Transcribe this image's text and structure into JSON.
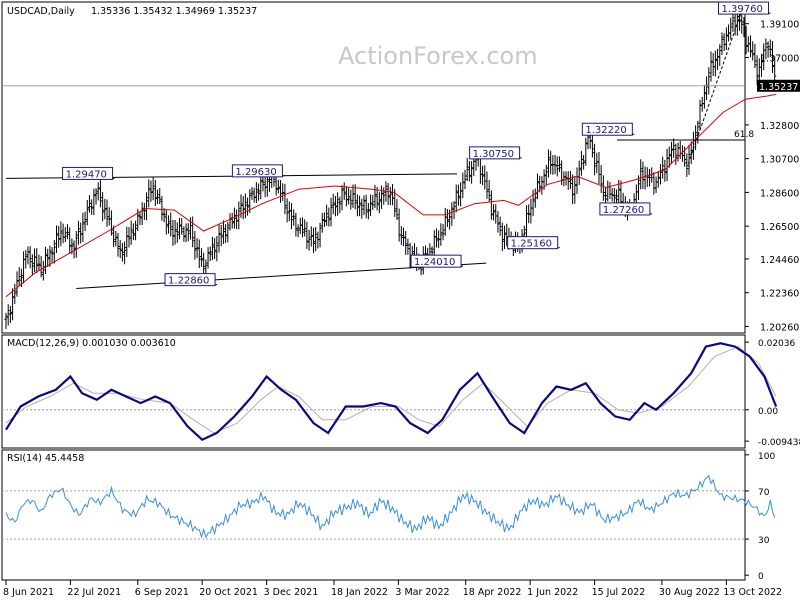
{
  "watermark": "ActionForex.com",
  "chart_data": [
    {
      "type": "candlestick",
      "title": "USDCAD,Daily",
      "ohlc_header": "1.35336 1.35432 1.34969 1.35237",
      "last_price": "1.35237",
      "y_ticks": [
        "1.39100",
        "1.37000",
        "1.34900",
        "1.32800",
        "1.30700",
        "1.28600",
        "1.26500",
        "1.24460",
        "1.22360",
        "1.20260"
      ],
      "x_ticks": [
        "8 Jun 2021",
        "22 Jul 2021",
        "6 Sep 2021",
        "20 Oct 2021",
        "3 Dec 2021",
        "18 Jan 2022",
        "3 Mar 2022",
        "18 Apr 2022",
        "1 Jun 2022",
        "15 Jul 2022",
        "30 Aug 2022",
        "13 Oct 2022"
      ],
      "x_tick_days": [
        0,
        44,
        90,
        134,
        178,
        224,
        268,
        314,
        358,
        402,
        448,
        492
      ],
      "total_days": 502,
      "ylim": [
        1.1985,
        1.4045
      ],
      "price_path": [
        [
          0,
          1.206
        ],
        [
          14,
          1.248
        ],
        [
          24,
          1.238
        ],
        [
          38,
          1.262
        ],
        [
          46,
          1.252
        ],
        [
          62,
          1.288
        ],
        [
          78,
          1.248
        ],
        [
          90,
          1.268
        ],
        [
          100,
          1.29
        ],
        [
          112,
          1.262
        ],
        [
          126,
          1.262
        ],
        [
          134,
          1.24
        ],
        [
          146,
          1.258
        ],
        [
          160,
          1.275
        ],
        [
          172,
          1.288
        ],
        [
          182,
          1.296
        ],
        [
          196,
          1.268
        ],
        [
          210,
          1.255
        ],
        [
          218,
          1.27
        ],
        [
          230,
          1.285
        ],
        [
          246,
          1.276
        ],
        [
          262,
          1.288
        ],
        [
          270,
          1.258
        ],
        [
          282,
          1.24
        ],
        [
          298,
          1.262
        ],
        [
          314,
          1.296
        ],
        [
          322,
          1.308
        ],
        [
          332,
          1.275
        ],
        [
          340,
          1.258
        ],
        [
          350,
          1.252
        ],
        [
          360,
          1.282
        ],
        [
          372,
          1.306
        ],
        [
          388,
          1.288
        ],
        [
          398,
          1.321
        ],
        [
          408,
          1.286
        ],
        [
          418,
          1.284
        ],
        [
          426,
          1.273
        ],
        [
          434,
          1.298
        ],
        [
          444,
          1.292
        ],
        [
          456,
          1.314
        ],
        [
          466,
          1.304
        ],
        [
          480,
          1.36
        ],
        [
          492,
          1.384
        ],
        [
          500,
          1.396
        ],
        [
          506,
          1.38
        ],
        [
          514,
          1.36
        ],
        [
          520,
          1.382
        ],
        [
          526,
          1.352
        ]
      ],
      "ma_path": [
        [
          0,
          1.221
        ],
        [
          20,
          1.236
        ],
        [
          45,
          1.249
        ],
        [
          70,
          1.262
        ],
        [
          95,
          1.276
        ],
        [
          115,
          1.275
        ],
        [
          135,
          1.262
        ],
        [
          155,
          1.27
        ],
        [
          175,
          1.279
        ],
        [
          200,
          1.288
        ],
        [
          225,
          1.29
        ],
        [
          250,
          1.288
        ],
        [
          265,
          1.286
        ],
        [
          285,
          1.272
        ],
        [
          300,
          1.272
        ],
        [
          320,
          1.279
        ],
        [
          340,
          1.281
        ],
        [
          350,
          1.278
        ],
        [
          370,
          1.291
        ],
        [
          390,
          1.296
        ],
        [
          410,
          1.289
        ],
        [
          430,
          1.294
        ],
        [
          450,
          1.3
        ],
        [
          470,
          1.318
        ],
        [
          490,
          1.336
        ],
        [
          505,
          1.344
        ],
        [
          520,
          1.346
        ],
        [
          526,
          1.347
        ]
      ],
      "levels": [
        {
          "label": "1.39760",
          "day": 488,
          "price": 1.3976,
          "box": "left"
        },
        {
          "label": "1.32220",
          "day": 395,
          "price": 1.3222,
          "box": "left"
        },
        {
          "label": "1.30750",
          "day": 318,
          "price": 1.3075,
          "box": "left"
        },
        {
          "label": "1.29470",
          "day": 40,
          "price": 1.2947,
          "box": "left"
        },
        {
          "label": "1.29630",
          "day": 156,
          "price": 1.2963,
          "box": "left"
        },
        {
          "label": "1.27260",
          "day": 407,
          "price": 1.2726,
          "box": "left"
        },
        {
          "label": "1.25160",
          "day": 344,
          "price": 1.2516,
          "box": "left"
        },
        {
          "label": "1.24010",
          "day": 278,
          "price": 1.2401,
          "box": "left"
        },
        {
          "label": "1.22860",
          "day": 110,
          "price": 1.2286,
          "box": "left"
        }
      ],
      "fib_label": "61.8",
      "fib_price": 1.3186,
      "trendlines": [
        {
          "from": [
            0,
            1.2947
          ],
          "to": [
            308,
            1.2975
          ]
        },
        {
          "from": [
            48,
            1.2262
          ],
          "to": [
            328,
            1.242
          ]
        }
      ],
      "fib_projection_line": {
        "from": [
          466,
          1.304
        ],
        "to": [
          502,
          1.3976
        ]
      }
    },
    {
      "type": "line",
      "title": "MACD(12,26,9) 0.001030 0.003610",
      "y_ticks": [
        "0.02036",
        "0.00",
        "-0.009438"
      ],
      "y_tick_values": [
        0.02036,
        0.0,
        -0.009438
      ],
      "ylim": [
        -0.0115,
        0.0225
      ],
      "macd_path": [
        [
          0,
          -0.006
        ],
        [
          10,
          0.001
        ],
        [
          22,
          0.004
        ],
        [
          34,
          0.006
        ],
        [
          44,
          0.01
        ],
        [
          52,
          0.005
        ],
        [
          62,
          0.003
        ],
        [
          72,
          0.006
        ],
        [
          82,
          0.004
        ],
        [
          92,
          0.002
        ],
        [
          102,
          0.004
        ],
        [
          112,
          0.002
        ],
        [
          124,
          -0.005
        ],
        [
          134,
          -0.009
        ],
        [
          144,
          -0.007
        ],
        [
          156,
          -0.002
        ],
        [
          168,
          0.004
        ],
        [
          178,
          0.01
        ],
        [
          188,
          0.006
        ],
        [
          198,
          0.003
        ],
        [
          210,
          -0.004
        ],
        [
          220,
          -0.007
        ],
        [
          232,
          0.001
        ],
        [
          244,
          0.001
        ],
        [
          256,
          0.002
        ],
        [
          266,
          0.001
        ],
        [
          276,
          -0.004
        ],
        [
          288,
          -0.007
        ],
        [
          298,
          -0.003
        ],
        [
          310,
          0.006
        ],
        [
          322,
          0.011
        ],
        [
          332,
          0.004
        ],
        [
          344,
          -0.004
        ],
        [
          354,
          -0.007
        ],
        [
          366,
          0.002
        ],
        [
          376,
          0.007
        ],
        [
          386,
          0.006
        ],
        [
          396,
          0.008
        ],
        [
          406,
          0.002
        ],
        [
          416,
          -0.002
        ],
        [
          426,
          -0.003
        ],
        [
          436,
          0.002
        ],
        [
          444,
          0.0
        ],
        [
          456,
          0.005
        ],
        [
          468,
          0.011
        ],
        [
          478,
          0.019
        ],
        [
          488,
          0.02
        ],
        [
          498,
          0.019
        ],
        [
          508,
          0.016
        ],
        [
          518,
          0.01
        ],
        [
          526,
          0.001
        ]
      ],
      "signal_path": [
        [
          0,
          -0.004
        ],
        [
          14,
          0.001
        ],
        [
          30,
          0.004
        ],
        [
          46,
          0.008
        ],
        [
          60,
          0.005
        ],
        [
          76,
          0.005
        ],
        [
          94,
          0.003
        ],
        [
          112,
          0.002
        ],
        [
          128,
          -0.003
        ],
        [
          142,
          -0.007
        ],
        [
          158,
          -0.004
        ],
        [
          174,
          0.003
        ],
        [
          186,
          0.007
        ],
        [
          200,
          0.004
        ],
        [
          216,
          -0.003
        ],
        [
          232,
          -0.003
        ],
        [
          250,
          0.001
        ],
        [
          268,
          0.001
        ],
        [
          282,
          -0.003
        ],
        [
          296,
          -0.005
        ],
        [
          312,
          0.003
        ],
        [
          326,
          0.008
        ],
        [
          340,
          0.002
        ],
        [
          356,
          -0.005
        ],
        [
          370,
          0.002
        ],
        [
          386,
          0.006
        ],
        [
          402,
          0.005
        ],
        [
          418,
          0.0
        ],
        [
          432,
          -0.001
        ],
        [
          448,
          0.001
        ],
        [
          466,
          0.007
        ],
        [
          484,
          0.016
        ],
        [
          500,
          0.019
        ],
        [
          514,
          0.014
        ],
        [
          526,
          0.004
        ]
      ]
    },
    {
      "type": "line",
      "title": "RSI(14) 45.4458",
      "y_ticks": [
        "100",
        "70",
        "30",
        "0"
      ],
      "y_tick_values": [
        100,
        70,
        30,
        0
      ],
      "ylim": [
        -4,
        104
      ],
      "rsi_path": [
        [
          0,
          50
        ],
        [
          6,
          44
        ],
        [
          12,
          60
        ],
        [
          18,
          62
        ],
        [
          24,
          52
        ],
        [
          30,
          66
        ],
        [
          38,
          72
        ],
        [
          44,
          58
        ],
        [
          50,
          50
        ],
        [
          58,
          64
        ],
        [
          64,
          60
        ],
        [
          72,
          70
        ],
        [
          80,
          54
        ],
        [
          88,
          50
        ],
        [
          96,
          63
        ],
        [
          104,
          60
        ],
        [
          112,
          50
        ],
        [
          120,
          45
        ],
        [
          128,
          40
        ],
        [
          136,
          33
        ],
        [
          144,
          40
        ],
        [
          152,
          48
        ],
        [
          160,
          58
        ],
        [
          168,
          60
        ],
        [
          176,
          66
        ],
        [
          184,
          52
        ],
        [
          192,
          50
        ],
        [
          200,
          60
        ],
        [
          208,
          52
        ],
        [
          216,
          40
        ],
        [
          224,
          52
        ],
        [
          232,
          56
        ],
        [
          240,
          60
        ],
        [
          248,
          50
        ],
        [
          256,
          62
        ],
        [
          264,
          55
        ],
        [
          272,
          44
        ],
        [
          280,
          38
        ],
        [
          288,
          48
        ],
        [
          296,
          40
        ],
        [
          304,
          52
        ],
        [
          312,
          66
        ],
        [
          320,
          62
        ],
        [
          328,
          52
        ],
        [
          336,
          44
        ],
        [
          344,
          38
        ],
        [
          352,
          54
        ],
        [
          360,
          62
        ],
        [
          368,
          58
        ],
        [
          376,
          66
        ],
        [
          384,
          58
        ],
        [
          392,
          52
        ],
        [
          400,
          60
        ],
        [
          408,
          46
        ],
        [
          416,
          48
        ],
        [
          424,
          52
        ],
        [
          432,
          62
        ],
        [
          440,
          54
        ],
        [
          448,
          60
        ],
        [
          456,
          68
        ],
        [
          464,
          66
        ],
        [
          472,
          72
        ],
        [
          480,
          82
        ],
        [
          488,
          66
        ],
        [
          496,
          64
        ],
        [
          504,
          62
        ],
        [
          512,
          56
        ],
        [
          518,
          48
        ],
        [
          522,
          60
        ],
        [
          526,
          45
        ]
      ]
    }
  ]
}
